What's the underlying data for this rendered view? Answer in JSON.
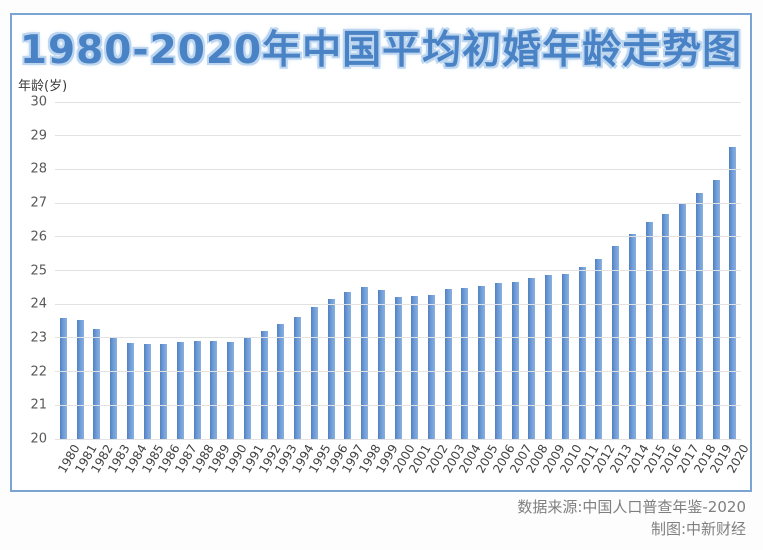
{
  "title": {
    "text": "1980-2020年中国平均初婚年龄走势图"
  },
  "colors": {
    "title": "#4a82c6",
    "title_glow": "#bcd6f0",
    "bar_dark": "#5180c0",
    "bar_mid": "#6d9bd6",
    "bar_light": "#8ab0e0",
    "card_border": "#7ba3d4",
    "gridline": "#e2e2e2",
    "tick": "#595959",
    "xlabel": "#3f3f3f",
    "footer": "#7f7f7f"
  },
  "chart_data": {
    "type": "bar",
    "title": "1980-2020年中国平均初婚年龄走势图",
    "xlabel": "",
    "ylabel": "年龄(岁)",
    "ylim": [
      20,
      30
    ],
    "ytick_step": 1,
    "grid": true,
    "legend": false,
    "categories": [
      "1980",
      "1981",
      "1982",
      "1983",
      "1984",
      "1985",
      "1986",
      "1987",
      "1988",
      "1989",
      "1990",
      "1991",
      "1992",
      "1993",
      "1994",
      "1995",
      "1996",
      "1997",
      "1998",
      "1999",
      "2000",
      "2001",
      "2002",
      "2003",
      "2004",
      "2005",
      "2006",
      "2007",
      "2008",
      "2009",
      "2010",
      "2011",
      "2012",
      "2013",
      "2014",
      "2015",
      "2016",
      "2017",
      "2018",
      "2019",
      "2020"
    ],
    "values": [
      23.59,
      23.53,
      23.25,
      23.04,
      22.85,
      22.82,
      22.82,
      22.89,
      22.91,
      22.92,
      22.87,
      22.99,
      23.21,
      23.42,
      23.62,
      23.91,
      24.15,
      24.36,
      24.52,
      24.42,
      24.21,
      24.25,
      24.28,
      24.44,
      24.48,
      24.53,
      24.63,
      24.66,
      24.77,
      24.87,
      24.89,
      25.09,
      25.35,
      25.72,
      26.07,
      26.43,
      26.69,
      27.0,
      27.29,
      27.68,
      28.67
    ]
  },
  "footer": {
    "source": "数据来源:中国人口普查年鉴-2020",
    "credit": "制图:中新财经"
  }
}
